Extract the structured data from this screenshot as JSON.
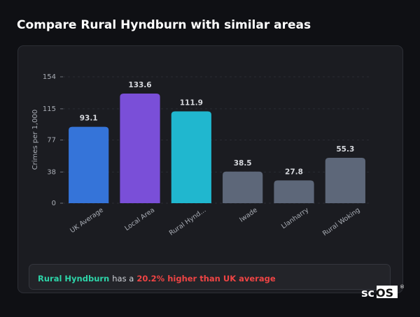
{
  "header": {
    "title": "Compare Rural Hyndburn with similar areas"
  },
  "chart_data": {
    "type": "bar",
    "y_label": "Crimes per 1,000",
    "categories": [
      "UK Average",
      "Local Area",
      "Rural Hynd...",
      "Iwade",
      "Llanharry",
      "Rural Woking"
    ],
    "values": [
      93.1,
      133.6,
      111.9,
      38.5,
      27.8,
      55.3
    ],
    "colors": [
      "#3574d9",
      "#7a4fd8",
      "#20b7cf",
      "#5d6779",
      "#5d6779",
      "#5d6779"
    ],
    "ylim": [
      0,
      154
    ],
    "yticks": [
      0,
      38,
      77,
      115,
      154
    ],
    "grid": true
  },
  "note": {
    "highlight": "Rural Hyndburn",
    "text": "has a",
    "emphasis": "20.2% higher than UK average"
  },
  "logo": {
    "text": "scOS",
    "mark": "®"
  }
}
